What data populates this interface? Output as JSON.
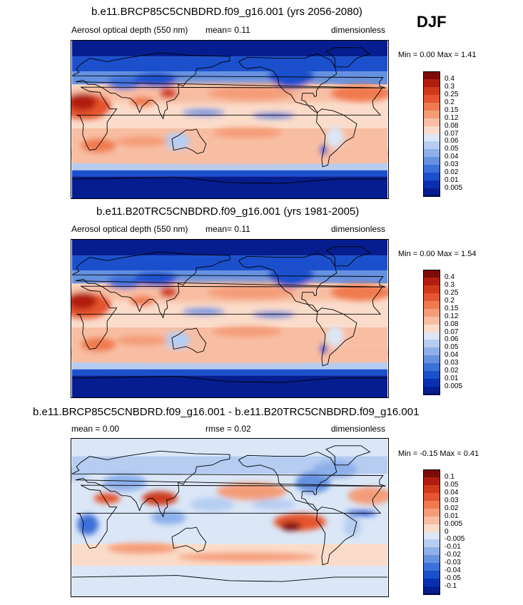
{
  "season": "DJF",
  "panels": [
    {
      "title": "b.e11.BRCP85C5CNBDRD.f09_g16.001 (yrs 2056-2080)",
      "left_label": "Aerosol optical depth (550 nm)",
      "center_label": "mean=   0.11",
      "right_label": "dimensionless",
      "minmax": "Min =   0.00 Max =   1.41",
      "levels": [
        "0.4",
        "0.3",
        "0.25",
        "0.2",
        "0.15",
        "0.12",
        "0.08",
        "0.07",
        "0.06",
        "0.05",
        "0.04",
        "0.03",
        "0.02",
        "0.01",
        "0.005"
      ],
      "palette": "absolute"
    },
    {
      "title": "b.e11.B20TRC5CNBDRD.f09_g16.001 (yrs 1981-2005)",
      "left_label": "Aerosol optical depth (550 nm)",
      "center_label": "mean=   0.11",
      "right_label": "dimensionless",
      "minmax": "Min =   0.00 Max =   1.54",
      "levels": [
        "0.4",
        "0.3",
        "0.25",
        "0.2",
        "0.15",
        "0.12",
        "0.08",
        "0.07",
        "0.06",
        "0.05",
        "0.04",
        "0.03",
        "0.02",
        "0.01",
        "0.005"
      ],
      "palette": "absolute"
    },
    {
      "title": "b.e11.BRCP85C5CNBDRD.f09_g16.001 - b.e11.B20TRC5CNBDRD.f09_g16.001",
      "left_label": "mean =   0.00",
      "center_label": "rmse =   0.02",
      "right_label": "dimensionless",
      "minmax": "Min =  -0.15 Max =   0.41",
      "levels": [
        "0.1",
        "0.05",
        "0.04",
        "0.03",
        "0.02",
        "0.01",
        "0.005",
        "0",
        "-0.005",
        "-0.01",
        "-0.02",
        "-0.03",
        "-0.04",
        "-0.05",
        "-0.1"
      ],
      "palette": "difference"
    }
  ],
  "colors": {
    "absolute": [
      "#7d0b0b",
      "#b11e10",
      "#cf3a1c",
      "#e5552f",
      "#f07a50",
      "#f49c78",
      "#f8bea3",
      "#fbdcca",
      "#dbe7f7",
      "#b6cdf1",
      "#8eb0ea",
      "#6591e0",
      "#3d70d8",
      "#1b4fcc",
      "#0b2fb2",
      "#051d8e"
    ],
    "difference": [
      "#7d0b0b",
      "#b11e10",
      "#cf3a1c",
      "#e5552f",
      "#f07a50",
      "#f49c78",
      "#f8bea3",
      "#fbdcca",
      "#dbe7f7",
      "#b6cdf1",
      "#8eb0ea",
      "#6591e0",
      "#3d70d8",
      "#1b4fcc",
      "#0b2fb2",
      "#051d8e"
    ]
  }
}
